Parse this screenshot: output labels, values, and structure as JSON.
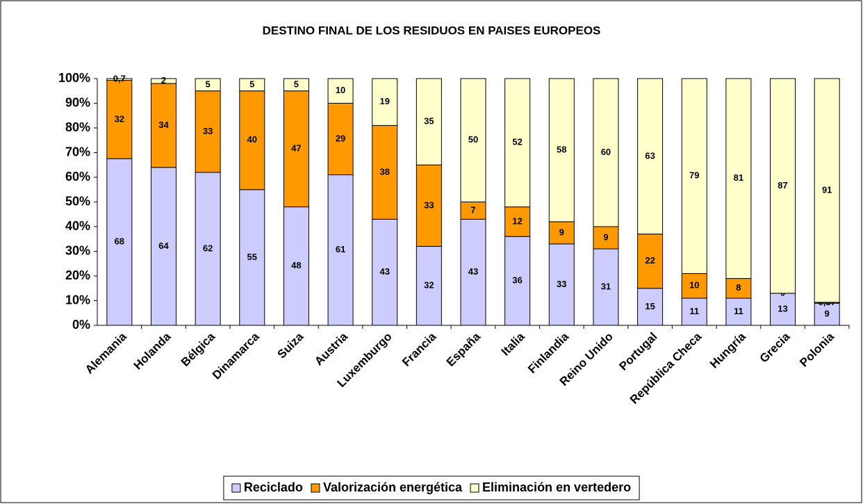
{
  "chart_data": {
    "type": "bar",
    "stacking": "percent",
    "title": "DESTINO FINAL DE LOS RESIDUOS EN PAISES EUROPEOS",
    "categories": [
      "Alemania",
      "Holanda",
      "Bélgica",
      "Dinamarca",
      "Suiza",
      "Austria",
      "Luxemburgo",
      "Francia",
      "España",
      "Italia",
      "Finlandia",
      "Reino Unido",
      "Portugal",
      "República Checa",
      "Hungría",
      "Grecia",
      "Polonia"
    ],
    "series": [
      {
        "name": "Reciclado",
        "color": "#ccccff",
        "values": [
          68,
          64,
          62,
          55,
          48,
          61,
          43,
          32,
          43,
          36,
          33,
          31,
          15,
          11,
          11,
          13,
          9
        ]
      },
      {
        "name": "Valorización energética",
        "color": "#ff9900",
        "values": [
          32,
          34,
          33,
          40,
          47,
          29,
          38,
          33,
          7,
          12,
          9,
          9,
          22,
          10,
          8,
          0,
          0.37
        ],
        "value_labels": [
          "32",
          "34",
          "33",
          "40",
          "47",
          "29",
          "38",
          "33",
          "7",
          "12",
          "9",
          "9",
          "22",
          "10",
          "8",
          "0",
          "0,37"
        ]
      },
      {
        "name": "Eliminación en vertedero",
        "color": "#ffffcc",
        "values": [
          0.7,
          2,
          5,
          5,
          5,
          10,
          19,
          35,
          50,
          52,
          58,
          60,
          63,
          79,
          81,
          87,
          91
        ],
        "value_labels": [
          "0,7",
          "2",
          "5",
          "5",
          "5",
          "10",
          "19",
          "35",
          "50",
          "52",
          "58",
          "60",
          "63",
          "79",
          "81",
          "87",
          "91"
        ]
      }
    ],
    "ylim": [
      0,
      100
    ],
    "yticks": [
      {
        "value": 0,
        "label": "0%"
      },
      {
        "value": 10,
        "label": "10%"
      },
      {
        "value": 20,
        "label": "20%"
      },
      {
        "value": 30,
        "label": "30%"
      },
      {
        "value": 40,
        "label": "40%"
      },
      {
        "value": 50,
        "label": "50%"
      },
      {
        "value": 60,
        "label": "60%"
      },
      {
        "value": 70,
        "label": "70%"
      },
      {
        "value": 80,
        "label": "80%"
      },
      {
        "value": 90,
        "label": "90%"
      },
      {
        "value": 100,
        "label": "100%"
      }
    ],
    "grid": false,
    "legend": "bottom"
  }
}
